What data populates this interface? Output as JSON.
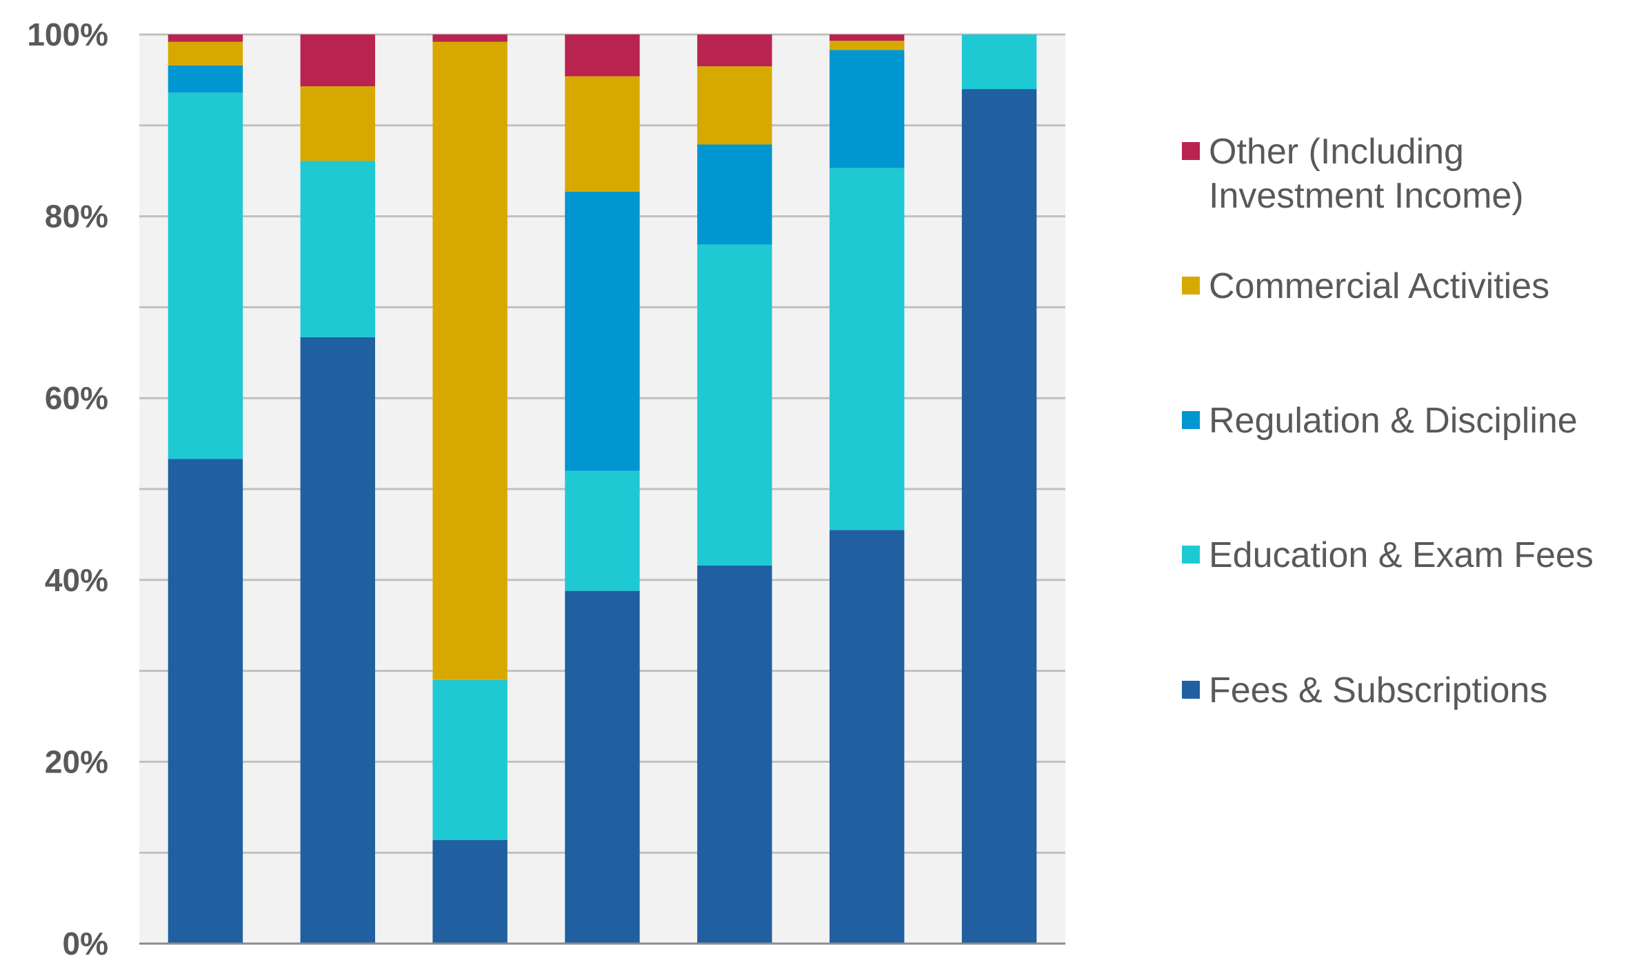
{
  "chart_data": {
    "type": "bar",
    "stacked": true,
    "percent": true,
    "title": "",
    "xlabel": "",
    "ylabel": "",
    "categories": [
      "",
      "",
      "",
      "",
      "",
      "",
      ""
    ],
    "ylim": [
      0,
      100
    ],
    "yticks": [
      "0%",
      "20%",
      "40%",
      "60%",
      "80%",
      "100%"
    ],
    "grid": true,
    "legend_position": "right",
    "series": [
      {
        "name": "Fees & Subscriptions",
        "color": "#2060a0",
        "values": [
          53.3,
          66.7,
          11.4,
          38.8,
          41.6,
          45.5,
          94.0
        ]
      },
      {
        "name": "Education & Exam Fees",
        "color": "#1ec9d4",
        "values": [
          40.3,
          19.4,
          17.6,
          13.2,
          35.3,
          39.8,
          6.0
        ]
      },
      {
        "name": "Regulation & Discipline",
        "color": "#0096cf",
        "values": [
          3.0,
          0,
          0,
          30.7,
          11.0,
          13.0,
          0
        ]
      },
      {
        "name": "Commercial Activities",
        "color": "#d7a900",
        "values": [
          2.6,
          8.2,
          70.2,
          12.7,
          8.6,
          1.0,
          0
        ]
      },
      {
        "name": "Other (Including Investment Income)",
        "color": "#b9234f",
        "values": [
          0.8,
          5.7,
          0.8,
          4.6,
          3.5,
          0.7,
          0
        ]
      }
    ],
    "legend": [
      {
        "lines": [
          "Other (Including",
          "Investment Income)"
        ],
        "color": "#b9234f"
      },
      {
        "lines": [
          "Commercial Activities"
        ],
        "color": "#d7a900"
      },
      {
        "lines": [
          "Regulation & Discipline"
        ],
        "color": "#0096cf"
      },
      {
        "lines": [
          "Education & Exam Fees"
        ],
        "color": "#1ec9d4"
      },
      {
        "lines": [
          "Fees & Subscriptions"
        ],
        "color": "#2060a0"
      }
    ]
  }
}
